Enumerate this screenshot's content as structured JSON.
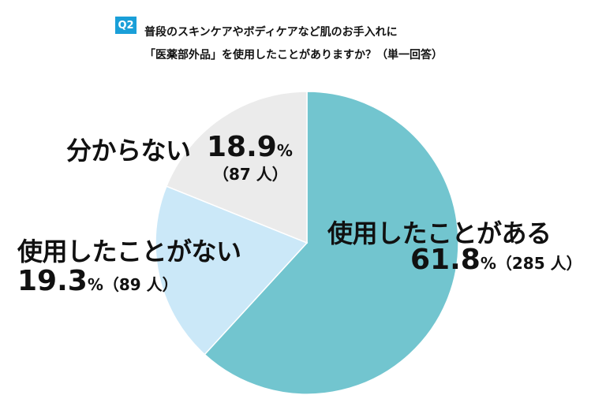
{
  "question": {
    "badge": "Q2",
    "line1": "普段のスキンケアやボディケアなど肌のお手入れに",
    "line2": "「医薬部外品」を使用したことがありますか？（単一回答）"
  },
  "chart_data": {
    "type": "pie",
    "title": "",
    "start_angle_deg": 0,
    "direction": "clockwise",
    "slices": [
      {
        "label": "使用したことがある",
        "percent": 61.8,
        "count": 285,
        "count_text": "（285 人）",
        "color": "#72c5cf"
      },
      {
        "label": "使用したことがない",
        "percent": 19.3,
        "count": 89,
        "count_text": "（89 人）",
        "color": "#cbe8f8"
      },
      {
        "label": "分からない",
        "percent": 18.9,
        "count": 87,
        "count_text": "（87 人）",
        "color": "#ebebeb"
      }
    ],
    "percent_suffix": "%",
    "slice_border_color": "#ffffff"
  }
}
